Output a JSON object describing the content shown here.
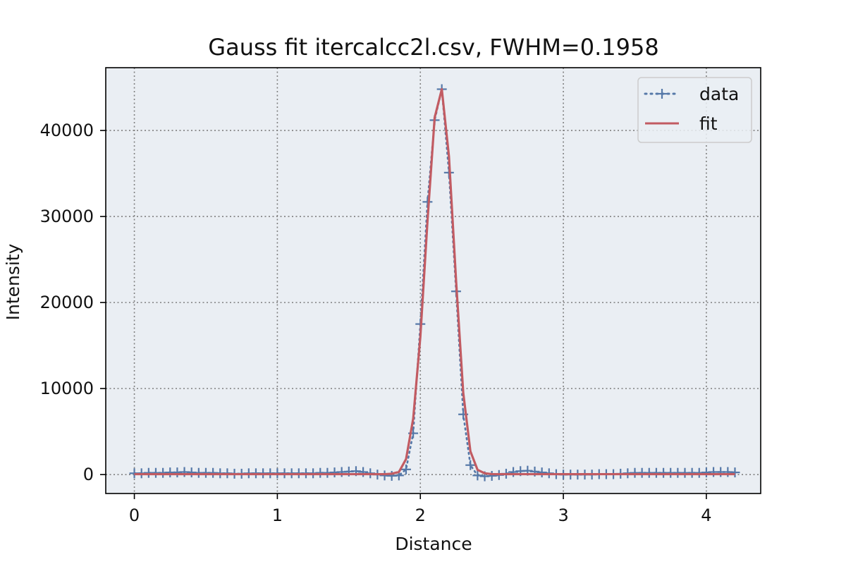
{
  "chart_data": {
    "type": "line",
    "title": "Gauss fit itercalcc2l.csv, FWHM=0.1958",
    "xlabel": "Distance",
    "ylabel": "Intensity",
    "xlim": [
      -0.2,
      4.38
    ],
    "ylim": [
      -2200,
      47300
    ],
    "xticks": [
      0,
      1,
      2,
      3,
      4
    ],
    "yticks": [
      0,
      10000,
      20000,
      30000,
      40000
    ],
    "xtick_labels": [
      "0",
      "1",
      "2",
      "3",
      "4"
    ],
    "ytick_labels": [
      "0",
      "10000",
      "20000",
      "30000",
      "40000"
    ],
    "grid": true,
    "legend_position": "top-right",
    "colors": {
      "plot_background": "#eaeef3",
      "data": "#5578a8",
      "fit": "#c25b62",
      "grid": "#7f7f7f",
      "axes": "#000000"
    },
    "series": [
      {
        "name": "data",
        "style": "dotted-plus",
        "x": [
          0,
          0.05,
          0.1,
          0.15,
          0.2,
          0.25,
          0.3,
          0.35,
          0.4,
          0.45,
          0.5,
          0.55,
          0.6,
          0.65,
          0.7,
          0.75,
          0.8,
          0.85,
          0.9,
          0.95,
          1.0,
          1.05,
          1.1,
          1.15,
          1.2,
          1.25,
          1.3,
          1.35,
          1.4,
          1.45,
          1.5,
          1.55,
          1.6,
          1.65,
          1.7,
          1.75,
          1.8,
          1.85,
          1.9,
          1.95,
          2.0,
          2.05,
          2.1,
          2.15,
          2.2,
          2.25,
          2.3,
          2.35,
          2.4,
          2.45,
          2.5,
          2.55,
          2.6,
          2.65,
          2.7,
          2.75,
          2.8,
          2.85,
          2.9,
          2.95,
          3.0,
          3.05,
          3.1,
          3.15,
          3.2,
          3.25,
          3.3,
          3.35,
          3.4,
          3.45,
          3.5,
          3.55,
          3.6,
          3.65,
          3.7,
          3.75,
          3.8,
          3.85,
          3.9,
          3.95,
          4.0,
          4.05,
          4.1,
          4.15,
          4.2
        ],
        "y": [
          150,
          150,
          200,
          200,
          200,
          250,
          250,
          300,
          250,
          200,
          200,
          200,
          150,
          150,
          100,
          100,
          150,
          150,
          150,
          150,
          150,
          150,
          150,
          150,
          150,
          150,
          200,
          200,
          250,
          300,
          350,
          400,
          300,
          150,
          0,
          -100,
          -150,
          -100,
          600,
          4800,
          17500,
          31700,
          41200,
          44800,
          35100,
          21300,
          7000,
          1100,
          -100,
          -200,
          -150,
          -50,
          100,
          300,
          400,
          450,
          350,
          250,
          150,
          50,
          0,
          0,
          0,
          0,
          0,
          50,
          50,
          50,
          100,
          150,
          200,
          200,
          200,
          200,
          200,
          200,
          200,
          200,
          200,
          200,
          250,
          300,
          300,
          300,
          250
        ]
      },
      {
        "name": "fit",
        "style": "solid",
        "x": [
          0,
          0.05,
          0.1,
          0.15,
          0.2,
          0.25,
          0.3,
          0.35,
          0.4,
          0.45,
          0.5,
          0.55,
          0.6,
          0.65,
          0.7,
          0.75,
          0.8,
          0.85,
          0.9,
          0.95,
          1.0,
          1.05,
          1.1,
          1.15,
          1.2,
          1.25,
          1.3,
          1.35,
          1.4,
          1.45,
          1.5,
          1.55,
          1.6,
          1.65,
          1.7,
          1.75,
          1.8,
          1.85,
          1.9,
          1.95,
          2.0,
          2.05,
          2.1,
          2.15,
          2.2,
          2.25,
          2.3,
          2.35,
          2.4,
          2.45,
          2.5,
          2.55,
          2.6,
          2.65,
          2.7,
          2.75,
          2.8,
          2.85,
          2.9,
          2.95,
          3.0,
          3.05,
          3.1,
          3.15,
          3.2,
          3.25,
          3.3,
          3.35,
          3.4,
          3.45,
          3.5,
          3.55,
          3.6,
          3.65,
          3.7,
          3.75,
          3.8,
          3.85,
          3.9,
          3.95,
          4.0,
          4.05,
          4.1,
          4.15,
          4.2
        ],
        "y": [
          50,
          50,
          50,
          50,
          50,
          50,
          50,
          50,
          50,
          50,
          50,
          50,
          50,
          50,
          50,
          50,
          50,
          50,
          50,
          50,
          50,
          50,
          50,
          50,
          50,
          50,
          50,
          50,
          50,
          50,
          50,
          50,
          50,
          50,
          50,
          50,
          100,
          300,
          1800,
          6500,
          16000,
          29500,
          41500,
          44800,
          37000,
          22500,
          9500,
          2700,
          550,
          150,
          60,
          50,
          50,
          50,
          50,
          50,
          50,
          50,
          50,
          50,
          50,
          50,
          50,
          50,
          50,
          50,
          50,
          50,
          50,
          50,
          50,
          50,
          50,
          50,
          50,
          50,
          50,
          50,
          50,
          50,
          50,
          50,
          50,
          50,
          50
        ]
      }
    ]
  }
}
